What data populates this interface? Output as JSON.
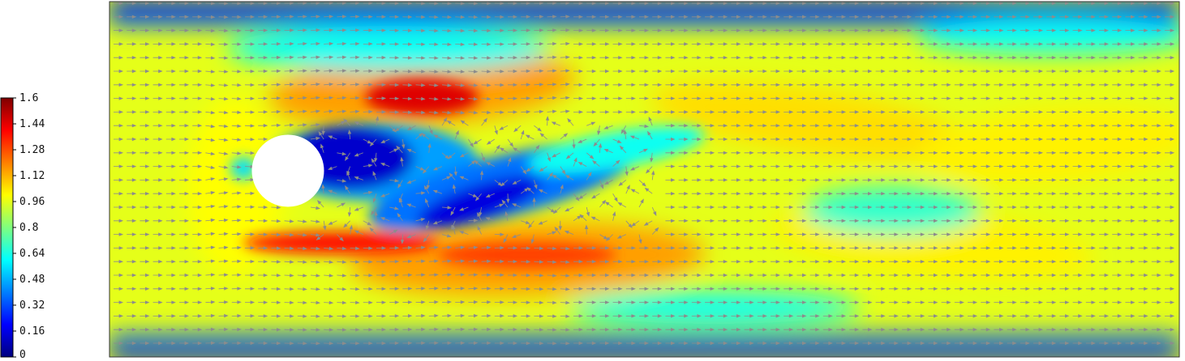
{
  "chart_data": {
    "type": "heatmap",
    "colorbar": {
      "ticks": [
        "1.6",
        "1.44",
        "1.28",
        "1.12",
        "0.96",
        "0.8",
        "0.64",
        "0.48",
        "0.32",
        "0.16",
        "0"
      ],
      "range": [
        0,
        1.6
      ],
      "colormap": [
        "#00007f",
        "#0000ff",
        "#007fff",
        "#00ffff",
        "#7fff7f",
        "#ffff00",
        "#ff7f00",
        "#ff0000",
        "#7f0000"
      ]
    },
    "field": {
      "freestream_value": 0.96,
      "wall_value": 0.1,
      "obstacle": "circular cylinder",
      "obstacle_color": "#ffffff",
      "arrow_color": "#8c8c8c",
      "wake": "oscillating vortex street"
    }
  }
}
